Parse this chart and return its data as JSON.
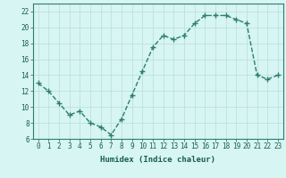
{
  "x": [
    0,
    1,
    2,
    3,
    4,
    5,
    6,
    7,
    8,
    9,
    10,
    11,
    12,
    13,
    14,
    15,
    16,
    17,
    18,
    19,
    20,
    21,
    22,
    23
  ],
  "y": [
    13,
    12,
    10.5,
    9,
    9.5,
    8,
    7.5,
    6.5,
    8.5,
    11.5,
    14.5,
    17.5,
    19,
    18.5,
    19,
    20.5,
    21.5,
    21.5,
    21.5,
    21,
    20.5,
    14,
    13.5,
    14
  ],
  "xlabel": "Humidex (Indice chaleur)",
  "xlim": [
    -0.5,
    23.5
  ],
  "ylim": [
    6,
    23
  ],
  "yticks": [
    6,
    8,
    10,
    12,
    14,
    16,
    18,
    20,
    22
  ],
  "xtick_labels": [
    "0",
    "1",
    "2",
    "3",
    "4",
    "5",
    "6",
    "7",
    "8",
    "9",
    "10",
    "11",
    "12",
    "13",
    "14",
    "15",
    "16",
    "17",
    "18",
    "19",
    "20",
    "21",
    "22",
    "23"
  ],
  "line_color": "#2e7d6e",
  "marker": "+",
  "marker_size": 4,
  "bg_color": "#d6f5f3",
  "grid_color": "#b8dedd",
  "xlabel_color": "#1a5c52",
  "tick_color": "#1a5c52",
  "tick_fontsize": 5.5,
  "xlabel_fontsize": 6.5,
  "linewidth": 1.0
}
